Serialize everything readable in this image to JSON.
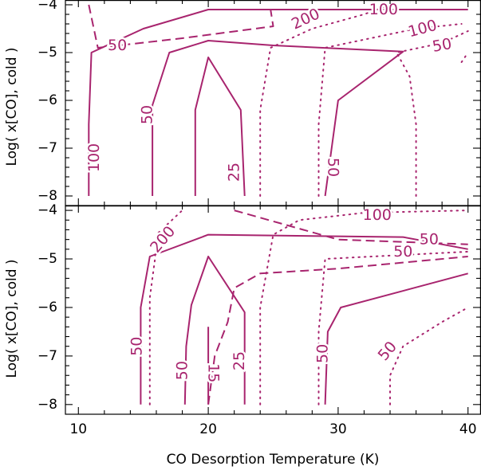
{
  "chart_data": [
    {
      "type": "contour",
      "panel": "top",
      "xlim": [
        9,
        41
      ],
      "ylim": [
        -8.2,
        -3.9
      ],
      "ylabel": "Log( x[CO], cold )",
      "xlabel": "",
      "x_ticks": [
        10,
        20,
        30,
        40
      ],
      "y_ticks": [
        -8,
        -7,
        -6,
        -5,
        -4
      ],
      "y_tick_labels": [
        "−8",
        "−7",
        "−6",
        "−5",
        "−4"
      ],
      "color": "#a8246e",
      "contours": [
        {
          "style": "solid",
          "points": [
            [
              10.8,
              -8.0
            ],
            [
              10.8,
              -6.5
            ],
            [
              11.0,
              -5.0
            ],
            [
              15.0,
              -4.5
            ],
            [
              20.0,
              -4.1
            ],
            [
              40.0,
              -4.1
            ]
          ]
        },
        {
          "style": "solid",
          "points": [
            [
              15.7,
              -8.0
            ],
            [
              15.7,
              -6.1
            ],
            [
              17.0,
              -5.0
            ],
            [
              20.0,
              -4.75
            ],
            [
              25.0,
              -4.85
            ],
            [
              35.0,
              -4.98
            ],
            [
              30.0,
              -6.0
            ],
            [
              29.0,
              -8.0
            ]
          ]
        },
        {
          "style": "solid",
          "points": [
            [
              19.0,
              -8.0
            ],
            [
              19.0,
              -6.2
            ],
            [
              20.0,
              -5.1
            ],
            [
              22.5,
              -6.2
            ],
            [
              22.8,
              -8.0
            ]
          ]
        },
        {
          "style": "dashed",
          "points": [
            [
              10.8,
              -4.0
            ],
            [
              11.5,
              -4.9
            ],
            [
              18.0,
              -4.7
            ],
            [
              25.0,
              -4.45
            ],
            [
              24.8,
              -4.1
            ]
          ]
        },
        {
          "style": "dotted",
          "points": [
            [
              24.0,
              -8.0
            ],
            [
              24.0,
              -6.2
            ],
            [
              24.8,
              -4.9
            ],
            [
              28.0,
              -4.5
            ],
            [
              32.0,
              -4.2
            ],
            [
              34.0,
              -4.0
            ]
          ]
        },
        {
          "style": "dotted",
          "points": [
            [
              28.5,
              -8.0
            ],
            [
              28.5,
              -6.5
            ],
            [
              29.0,
              -4.9
            ],
            [
              36.0,
              -4.5
            ],
            [
              39.5,
              -4.4
            ]
          ]
        },
        {
          "style": "dotted",
          "points": [
            [
              36.0,
              -8.0
            ],
            [
              36.0,
              -6.5
            ],
            [
              35.5,
              -5.5
            ],
            [
              34.5,
              -5.0
            ],
            [
              38.0,
              -4.8
            ],
            [
              40.0,
              -4.55
            ]
          ]
        },
        {
          "style": "dotted",
          "points": [
            [
              39.5,
              -5.2
            ],
            [
              40.0,
              -5.0
            ]
          ]
        }
      ],
      "labels": [
        {
          "text": "100",
          "x": 11.2,
          "y": -7.2,
          "rotate": -90
        },
        {
          "text": "50",
          "x": 15.3,
          "y": -6.3,
          "rotate": -90
        },
        {
          "text": "50",
          "x": 13.0,
          "y": -4.85,
          "rotate": 0
        },
        {
          "text": "25",
          "x": 22.0,
          "y": -7.5,
          "rotate": -90
        },
        {
          "text": "200",
          "x": 27.5,
          "y": -4.3,
          "rotate": -25
        },
        {
          "text": "100",
          "x": 33.5,
          "y": -4.1,
          "rotate": 0
        },
        {
          "text": "100",
          "x": 36.5,
          "y": -4.5,
          "rotate": -15
        },
        {
          "text": "50",
          "x": 29.6,
          "y": -7.4,
          "rotate": 90
        },
        {
          "text": "50",
          "x": 38.0,
          "y": -4.85,
          "rotate": -10
        }
      ]
    },
    {
      "type": "contour",
      "panel": "bottom",
      "xlim": [
        9,
        41
      ],
      "ylim": [
        -8.2,
        -3.9
      ],
      "ylabel": "Log( x[CO], cold )",
      "xlabel": "CO Desorption Temperature (K)",
      "x_ticks": [
        10,
        20,
        30,
        40
      ],
      "x_tick_labels": [
        "10",
        "20",
        "30",
        "40"
      ],
      "y_ticks": [
        -8,
        -7,
        -6,
        -5,
        -4
      ],
      "y_tick_labels": [
        "−8",
        "−7",
        "−6",
        "−5",
        "−4"
      ],
      "color": "#a8246e",
      "contours": [
        {
          "style": "solid",
          "points": [
            [
              14.8,
              -8.0
            ],
            [
              14.8,
              -6.0
            ],
            [
              15.5,
              -4.95
            ],
            [
              20.0,
              -4.5
            ],
            [
              35.0,
              -4.55
            ],
            [
              40.0,
              -4.8
            ]
          ]
        },
        {
          "style": "solid",
          "points": [
            [
              18.2,
              -8.0
            ],
            [
              18.3,
              -6.8
            ],
            [
              18.7,
              -5.95
            ],
            [
              20.0,
              -4.95
            ],
            [
              22.8,
              -6.1
            ],
            [
              22.8,
              -8.0
            ]
          ]
        },
        {
          "style": "solid",
          "points": [
            [
              20.0,
              -8.0
            ],
            [
              20.0,
              -6.4
            ]
          ]
        },
        {
          "style": "solid",
          "points": [
            [
              29.0,
              -8.0
            ],
            [
              29.2,
              -6.5
            ],
            [
              30.2,
              -6.0
            ],
            [
              40.0,
              -5.3
            ]
          ]
        },
        {
          "style": "dashed",
          "points": [
            [
              20.0,
              -8.0
            ],
            [
              20.5,
              -7.0
            ],
            [
              21.5,
              -6.3
            ],
            [
              22.0,
              -5.6
            ],
            [
              24.0,
              -5.3
            ],
            [
              30.0,
              -5.2
            ],
            [
              40.0,
              -4.95
            ]
          ]
        },
        {
          "style": "dashed",
          "points": [
            [
              22.0,
              -4.0
            ],
            [
              30.0,
              -4.6
            ],
            [
              40.0,
              -4.7
            ]
          ]
        },
        {
          "style": "dotted",
          "points": [
            [
              15.5,
              -8.0
            ],
            [
              15.5,
              -5.8
            ],
            [
              15.9,
              -5.0
            ],
            [
              16.0,
              -4.5
            ],
            [
              18.0,
              -4.0
            ]
          ]
        },
        {
          "style": "dotted",
          "points": [
            [
              24.0,
              -8.0
            ],
            [
              24.0,
              -6.0
            ],
            [
              25.0,
              -4.5
            ],
            [
              27.0,
              -4.2
            ],
            [
              32.0,
              -4.05
            ],
            [
              40.0,
              -4.0
            ]
          ]
        },
        {
          "style": "dotted",
          "points": [
            [
              28.5,
              -8.0
            ],
            [
              28.5,
              -6.5
            ],
            [
              29.0,
              -5.0
            ],
            [
              40.0,
              -4.85
            ]
          ]
        },
        {
          "style": "dotted",
          "points": [
            [
              34.0,
              -8.0
            ],
            [
              34.0,
              -7.4
            ],
            [
              35.0,
              -6.8
            ],
            [
              38.0,
              -6.3
            ],
            [
              40.0,
              -6.0
            ]
          ]
        }
      ],
      "labels": [
        {
          "text": "200",
          "x": 16.5,
          "y": -4.6,
          "rotate": -50
        },
        {
          "text": "100",
          "x": 33.0,
          "y": -4.1,
          "rotate": 0
        },
        {
          "text": "50",
          "x": 37.0,
          "y": -4.6,
          "rotate": 0
        },
        {
          "text": "50",
          "x": 35.0,
          "y": -4.85,
          "rotate": 0
        },
        {
          "text": "50",
          "x": 14.5,
          "y": -6.8,
          "rotate": -90
        },
        {
          "text": "50",
          "x": 18.0,
          "y": -7.3,
          "rotate": -90
        },
        {
          "text": "15",
          "x": 20.4,
          "y": -7.35,
          "rotate": 90
        },
        {
          "text": "25",
          "x": 22.4,
          "y": -7.1,
          "rotate": -90
        },
        {
          "text": "50",
          "x": 28.8,
          "y": -6.95,
          "rotate": -90
        },
        {
          "text": "50",
          "x": 33.8,
          "y": -6.9,
          "rotate": -50
        }
      ]
    }
  ]
}
